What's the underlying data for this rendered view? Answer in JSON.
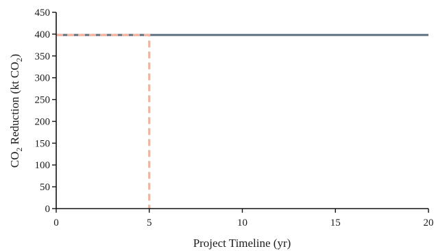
{
  "chart_data": {
    "type": "line",
    "xlabel": "Project Timeline (yr)",
    "ylabel": {
      "prefix": "CO",
      "sub1": "2",
      "middle": " Reduction (kt CO",
      "sub2": "2",
      "suffix": ")"
    },
    "xlim": [
      0,
      20
    ],
    "ylim": [
      0,
      450
    ],
    "xticks": [
      0,
      5,
      10,
      15,
      20
    ],
    "yticks": [
      0,
      50,
      100,
      150,
      200,
      250,
      300,
      350,
      400,
      450
    ],
    "grid": false,
    "legend": "none",
    "series": [
      {
        "color": "#5b6f80",
        "style": "solid",
        "x": [
          0,
          20
        ],
        "y": [
          398,
          398
        ]
      },
      {
        "color": "#f2b49a",
        "style": "dashed",
        "x": [
          0,
          5,
          5
        ],
        "y": [
          398,
          398,
          0
        ]
      }
    ]
  }
}
